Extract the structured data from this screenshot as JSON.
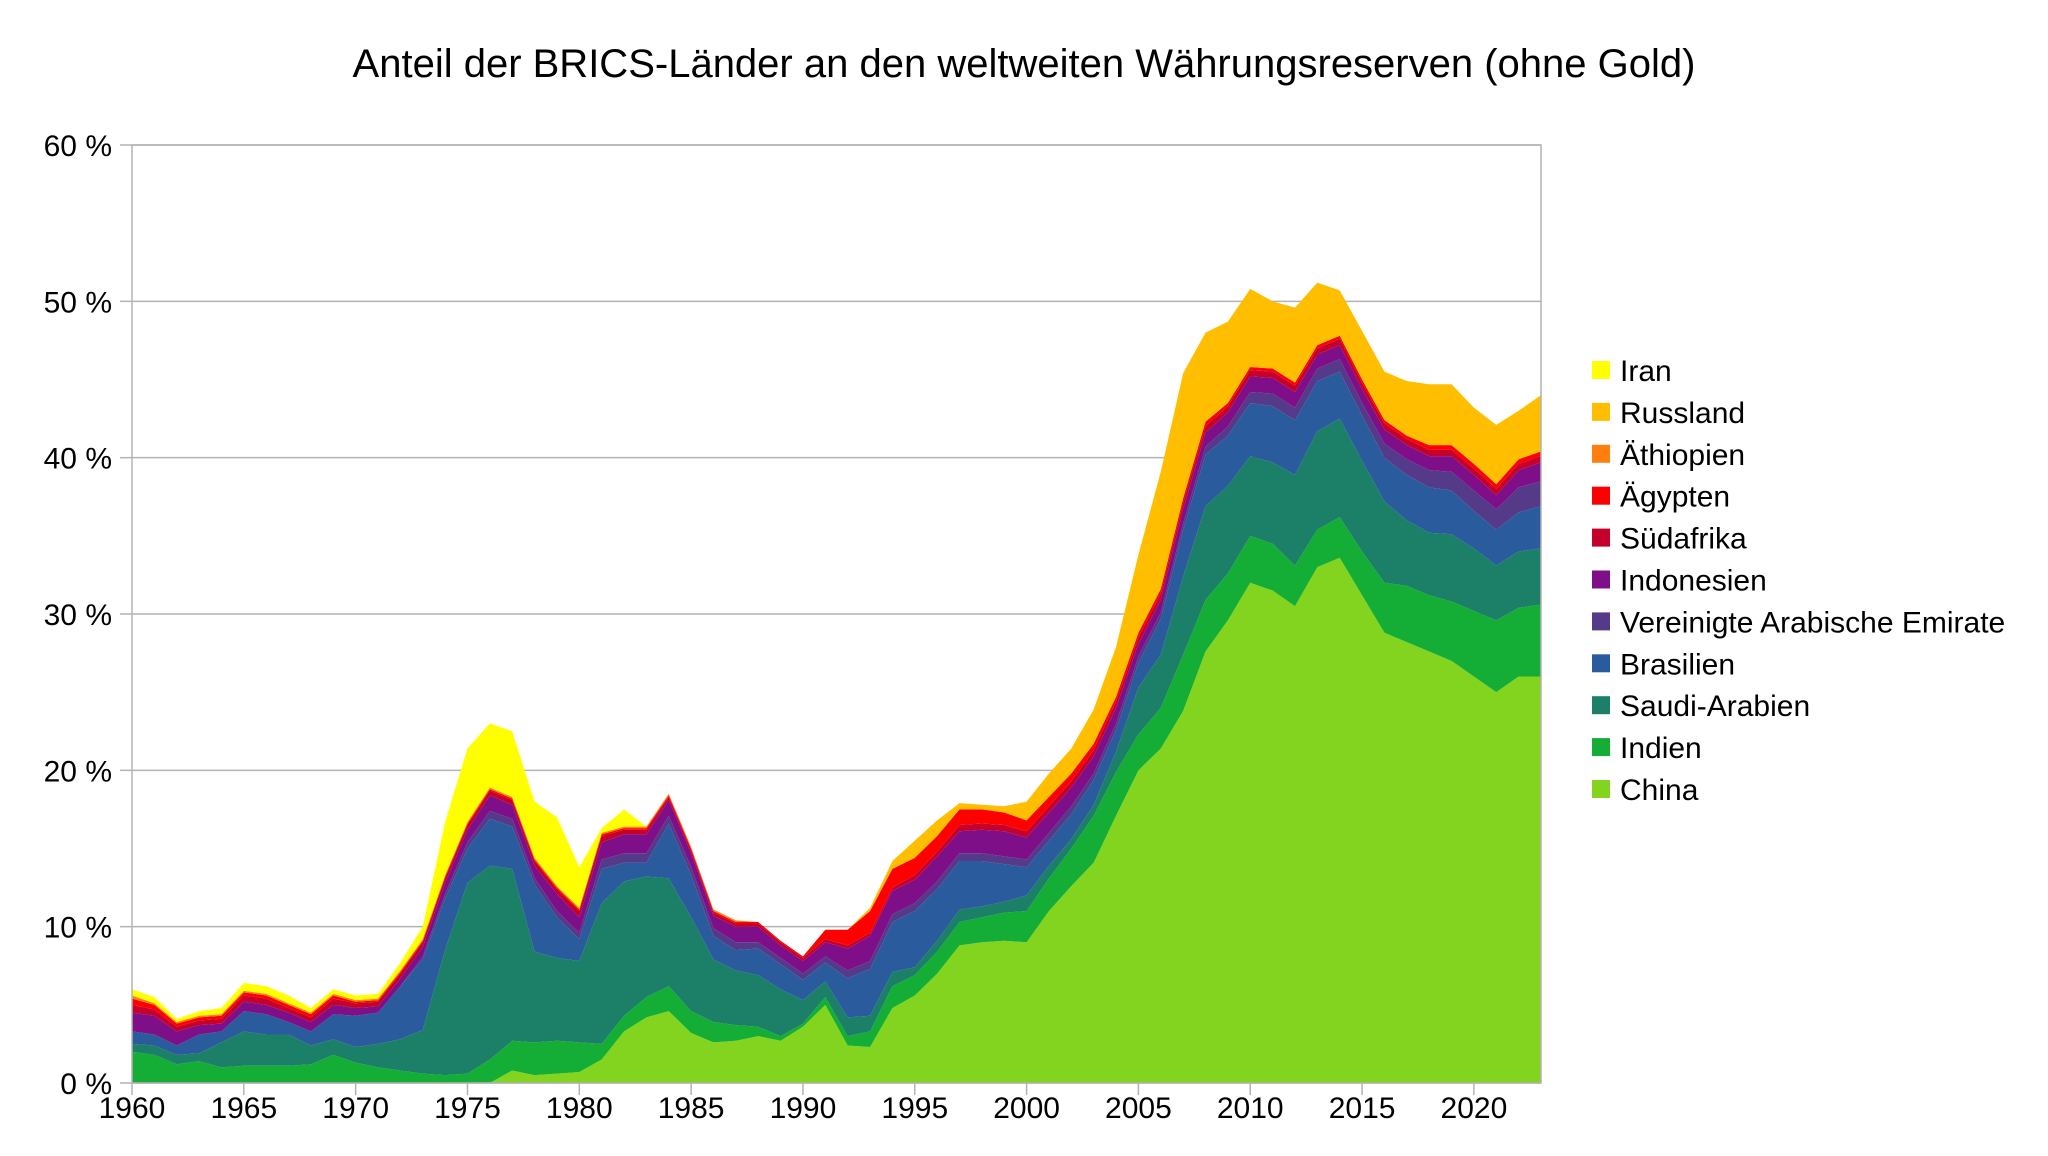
{
  "chart_data": {
    "type": "area",
    "stacked": true,
    "title": "Anteil der BRICS-Länder an den weltweiten Währungsreserven (ohne Gold)",
    "xlabel": "",
    "ylabel": "",
    "xlim": [
      1960,
      2023
    ],
    "ylim": [
      0,
      60
    ],
    "grid": "horizontal",
    "legend_position": "right",
    "y_tick_values": [
      0,
      10,
      20,
      30,
      40,
      50,
      60
    ],
    "y_tick_labels": [
      "0 %",
      "10 %",
      "20 %",
      "30 %",
      "40 %",
      "50 %",
      "60 %"
    ],
    "x_tick_values": [
      1960,
      1965,
      1970,
      1975,
      1980,
      1985,
      1990,
      1995,
      2000,
      2005,
      2010,
      2015,
      2020
    ],
    "x_tick_labels": [
      "1960",
      "1965",
      "1970",
      "1975",
      "1980",
      "1985",
      "1990",
      "1995",
      "2000",
      "2005",
      "2010",
      "2015",
      "2020"
    ],
    "x": [
      1960,
      1961,
      1962,
      1963,
      1964,
      1965,
      1966,
      1967,
      1968,
      1969,
      1970,
      1971,
      1972,
      1973,
      1974,
      1975,
      1976,
      1977,
      1978,
      1979,
      1980,
      1981,
      1982,
      1983,
      1984,
      1985,
      1986,
      1987,
      1988,
      1989,
      1990,
      1991,
      1992,
      1993,
      1994,
      1995,
      1996,
      1997,
      1998,
      1999,
      2000,
      2001,
      2002,
      2003,
      2004,
      2005,
      2006,
      2007,
      2008,
      2009,
      2010,
      2011,
      2012,
      2013,
      2014,
      2015,
      2016,
      2017,
      2018,
      2019,
      2020,
      2021,
      2022,
      2023
    ],
    "series": [
      {
        "name": "China",
        "color": "#83d41f",
        "values": [
          0,
          0,
          0,
          0,
          0,
          0,
          0,
          0,
          0,
          0,
          0,
          0,
          0,
          0,
          0,
          0,
          0,
          0.8,
          0.5,
          0.6,
          0.7,
          1.5,
          3.3,
          4.2,
          4.6,
          3.2,
          2.6,
          2.7,
          3.0,
          2.7,
          3.6,
          5.0,
          2.4,
          2.3,
          4.8,
          5.6,
          7.0,
          8.8,
          9.0,
          9.1,
          9.0,
          11.0,
          12.6,
          14.1,
          17.1,
          20.0,
          21.4,
          23.8,
          27.6,
          29.6,
          32.0,
          31.5,
          30.5,
          33.0,
          33.6,
          31.2,
          28.8,
          28.2,
          27.6,
          27.0,
          26.0,
          25.0,
          26.0,
          26.0
        ]
      },
      {
        "name": "Indien",
        "color": "#14ad36",
        "values": [
          2.0,
          1.8,
          1.2,
          1.4,
          1.0,
          1.1,
          1.1,
          1.1,
          1.2,
          1.8,
          1.3,
          1.0,
          0.8,
          0.6,
          0.5,
          0.6,
          1.5,
          1.9,
          2.1,
          2.1,
          1.9,
          1.0,
          1.0,
          1.3,
          1.6,
          1.4,
          1.3,
          1.0,
          0.6,
          0.3,
          0.2,
          0.5,
          0.6,
          1.0,
          1.4,
          1.3,
          1.4,
          1.5,
          1.6,
          1.8,
          2.0,
          2.1,
          2.4,
          3.0,
          2.8,
          2.3,
          2.6,
          3.6,
          3.3,
          3.0,
          3.0,
          3.0,
          2.6,
          2.4,
          2.6,
          2.8,
          3.2,
          3.6,
          3.6,
          3.8,
          4.2,
          4.6,
          4.4,
          4.6
        ]
      },
      {
        "name": "Saudi-Arabien",
        "color": "#1b8067",
        "values": [
          0.5,
          0.6,
          0.6,
          0.5,
          1.6,
          2.2,
          2.0,
          2.0,
          1.2,
          1.0,
          1.0,
          1.5,
          2.0,
          2.8,
          8.0,
          12.2,
          12.4,
          11.0,
          5.8,
          5.3,
          5.2,
          9.0,
          8.6,
          7.7,
          6.9,
          6.0,
          4.0,
          3.5,
          3.3,
          3.0,
          1.5,
          1.0,
          1.2,
          1.0,
          0.9,
          0.5,
          0.7,
          0.8,
          0.7,
          0.7,
          1.0,
          0.8,
          0.6,
          0.7,
          1.3,
          3.0,
          3.4,
          5.0,
          6.0,
          5.6,
          5.1,
          5.2,
          5.8,
          6.3,
          6.3,
          5.8,
          5.2,
          4.2,
          4.0,
          4.3,
          4.0,
          3.5,
          3.6,
          3.6
        ]
      },
      {
        "name": "Brasilien",
        "color": "#2a5b9d",
        "values": [
          0.8,
          0.7,
          0.6,
          1.2,
          0.7,
          1.3,
          1.3,
          0.8,
          0.9,
          1.6,
          2.0,
          2.0,
          3.4,
          4.5,
          3.3,
          2.2,
          3.0,
          2.7,
          4.3,
          2.6,
          1.4,
          2.2,
          1.2,
          0.9,
          3.5,
          2.7,
          1.5,
          1.3,
          1.7,
          1.6,
          1.3,
          1.2,
          2.5,
          3.0,
          3.2,
          3.6,
          3.3,
          3.1,
          2.9,
          2.4,
          1.8,
          1.6,
          1.6,
          1.6,
          1.4,
          1.6,
          2.3,
          3.0,
          3.3,
          3.2,
          3.4,
          3.6,
          3.5,
          3.2,
          3.0,
          2.9,
          2.8,
          2.9,
          2.9,
          2.8,
          2.4,
          2.3,
          2.5,
          2.7
        ]
      },
      {
        "name": "Vereinigte Arabische Emirate",
        "color": "#553a8a",
        "values": [
          0,
          0,
          0,
          0,
          0,
          0,
          0,
          0,
          0,
          0,
          0,
          0,
          0,
          0.2,
          0.3,
          0.4,
          0.5,
          0.5,
          0.4,
          0.4,
          0.4,
          0.6,
          0.6,
          0.6,
          0.5,
          0.5,
          0.5,
          0.5,
          0.4,
          0.4,
          0.4,
          0.4,
          0.5,
          0.5,
          0.5,
          0.5,
          0.5,
          0.5,
          0.5,
          0.5,
          0.5,
          0.5,
          0.5,
          0.4,
          0.4,
          0.4,
          0.4,
          0.4,
          0.5,
          0.6,
          0.7,
          0.8,
          0.8,
          0.8,
          0.8,
          0.8,
          0.9,
          1.0,
          1.1,
          1.2,
          1.3,
          1.3,
          1.6,
          1.6
        ]
      },
      {
        "name": "Indonesien",
        "color": "#7e0f89",
        "values": [
          1.2,
          1.2,
          0.9,
          0.6,
          0.5,
          0.6,
          0.6,
          0.6,
          0.6,
          0.6,
          0.5,
          0.4,
          0.5,
          0.6,
          0.7,
          0.8,
          1.0,
          0.9,
          0.8,
          1.1,
          1.0,
          1.1,
          1.2,
          1.2,
          1.0,
          0.9,
          0.8,
          1.0,
          1.0,
          0.8,
          0.8,
          0.9,
          1.4,
          1.6,
          1.5,
          1.5,
          1.6,
          1.4,
          1.5,
          1.6,
          1.4,
          1.3,
          1.2,
          1.1,
          1.0,
          0.8,
          0.8,
          0.9,
          0.9,
          0.9,
          1.0,
          1.0,
          1.0,
          0.9,
          0.9,
          0.9,
          0.9,
          0.9,
          0.9,
          1.0,
          1.0,
          0.9,
          1.1,
          1.2
        ]
      },
      {
        "name": "Südafrika",
        "color": "#c4002b",
        "values": [
          0.5,
          0.4,
          0.3,
          0.3,
          0.3,
          0.4,
          0.4,
          0.3,
          0.3,
          0.4,
          0.3,
          0.3,
          0.3,
          0.3,
          0.3,
          0.3,
          0.3,
          0.3,
          0.3,
          0.3,
          0.4,
          0.4,
          0.3,
          0.3,
          0.2,
          0.2,
          0.2,
          0.2,
          0.2,
          0.2,
          0.2,
          0.2,
          0.2,
          0.2,
          0.2,
          0.3,
          0.3,
          0.4,
          0.4,
          0.4,
          0.4,
          0.4,
          0.4,
          0.4,
          0.4,
          0.4,
          0.4,
          0.4,
          0.4,
          0.4,
          0.4,
          0.4,
          0.4,
          0.4,
          0.4,
          0.4,
          0.4,
          0.4,
          0.4,
          0.4,
          0.4,
          0.4,
          0.4,
          0.4
        ]
      },
      {
        "name": "Ägypten",
        "color": "#ff0000",
        "values": [
          0.4,
          0.3,
          0.2,
          0.2,
          0.2,
          0.2,
          0.2,
          0.2,
          0.2,
          0.2,
          0.1,
          0.1,
          0.1,
          0.1,
          0.1,
          0.1,
          0.1,
          0.1,
          0.1,
          0.1,
          0.1,
          0.1,
          0.1,
          0.1,
          0.1,
          0.1,
          0.1,
          0.1,
          0.1,
          0.1,
          0.1,
          0.6,
          1.0,
          1.4,
          1.2,
          1.1,
          1.0,
          1.0,
          0.9,
          0.8,
          0.7,
          0.6,
          0.5,
          0.4,
          0.3,
          0.3,
          0.3,
          0.3,
          0.3,
          0.2,
          0.2,
          0.2,
          0.2,
          0.2,
          0.2,
          0.2,
          0.2,
          0.2,
          0.3,
          0.3,
          0.3,
          0.3,
          0.3,
          0.3
        ]
      },
      {
        "name": "Äthiopien",
        "color": "#ff7f0e",
        "values": [
          0.2,
          0.1,
          0.1,
          0.1,
          0.1,
          0.1,
          0.1,
          0.1,
          0.1,
          0.1,
          0.1,
          0.1,
          0.1,
          0.1,
          0.1,
          0.1,
          0.1,
          0.1,
          0.1,
          0.1,
          0.1,
          0.1,
          0.1,
          0.1,
          0.1,
          0.1,
          0.1,
          0.1,
          0,
          0,
          0,
          0,
          0,
          0,
          0,
          0,
          0,
          0,
          0,
          0,
          0,
          0,
          0,
          0,
          0,
          0,
          0,
          0,
          0,
          0,
          0,
          0,
          0,
          0,
          0,
          0,
          0,
          0,
          0,
          0,
          0,
          0,
          0,
          0
        ]
      },
      {
        "name": "Russland",
        "color": "#ffbf00",
        "values": [
          0,
          0,
          0,
          0,
          0,
          0,
          0,
          0,
          0,
          0,
          0,
          0,
          0,
          0,
          0,
          0,
          0,
          0,
          0,
          0,
          0,
          0,
          0,
          0,
          0,
          0,
          0,
          0,
          0,
          0,
          0,
          0,
          0,
          0.2,
          0.5,
          1.1,
          1.0,
          0.4,
          0.3,
          0.4,
          1.2,
          1.5,
          1.6,
          2.2,
          3.2,
          5.0,
          7.5,
          8.0,
          5.7,
          5.2,
          5.0,
          4.3,
          4.8,
          4.0,
          2.9,
          3.1,
          3.1,
          3.5,
          3.9,
          3.9,
          3.6,
          3.8,
          3.1,
          3.6
        ]
      },
      {
        "name": "Iran",
        "color": "#ffff00",
        "values": [
          0.4,
          0.4,
          0.2,
          0.3,
          0.4,
          0.5,
          0.5,
          0.5,
          0.3,
          0.3,
          0.3,
          0.3,
          0.5,
          0.8,
          3.4,
          4.7,
          4.1,
          4.2,
          3.6,
          4.4,
          2.6,
          0.3,
          1.1,
          0,
          0,
          0,
          0,
          0,
          0,
          0,
          0,
          0,
          0,
          0,
          0,
          0,
          0,
          0,
          0,
          0,
          0,
          0,
          0,
          0,
          0,
          0,
          0,
          0,
          0,
          0,
          0,
          0,
          0,
          0,
          0,
          0,
          0,
          0,
          0,
          0,
          0,
          0,
          0,
          0
        ]
      }
    ],
    "legend_order": [
      "Iran",
      "Russland",
      "Äthiopien",
      "Ägypten",
      "Südafrika",
      "Indonesien",
      "Vereinigte Arabische Emirate",
      "Brasilien",
      "Saudi-Arabien",
      "Indien",
      "China"
    ]
  }
}
